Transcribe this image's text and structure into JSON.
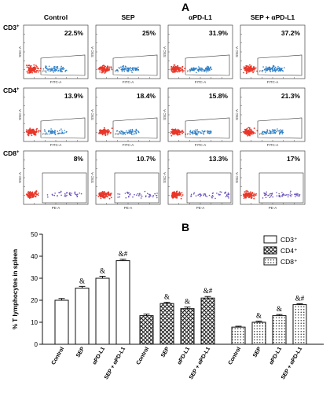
{
  "panel_a": {
    "letter": "A",
    "columns": [
      "Control",
      "SEP",
      "αPD-L1",
      "SEP + αPD-L1"
    ],
    "rows": [
      {
        "marker": "CD3",
        "sup": "+",
        "xaxis": "FITC-A",
        "yaxis": "SSC-A",
        "gate": "P3",
        "pcts": [
          "22.5%",
          "25%",
          "31.9%",
          "37.2%"
        ]
      },
      {
        "marker": "CD4",
        "sup": "+",
        "xaxis": "FITC-A",
        "yaxis": "SSC-A",
        "gate": "P3",
        "pcts": [
          "13.9%",
          "18.4%",
          "15.8%",
          "21.3%"
        ]
      },
      {
        "marker": "CD8",
        "sup": "+",
        "xaxis": "PE-A",
        "yaxis": "SSC-A",
        "gate": "",
        "pcts": [
          "8%",
          "10.7%",
          "13.3%",
          "17%"
        ]
      }
    ],
    "colors": {
      "dense": "#e8372a",
      "cd3": "#2d7fc6",
      "cd4": "#2d7fc6",
      "cd8": "#6b4fb8"
    }
  },
  "chart_data": {
    "type": "bar",
    "letter": "B",
    "ylabel": "% T lymphocytes in spleen",
    "ylim": [
      0,
      50
    ],
    "yticks": [
      "0",
      "10",
      "20",
      "30",
      "40",
      "50"
    ],
    "categories": [
      "Control",
      "SEP",
      "αPD-L1",
      "SEP + αPD-L1"
    ],
    "series": [
      {
        "name": "CD3⁺",
        "pattern": "open",
        "values": [
          20,
          25.5,
          30,
          38
        ],
        "errors": [
          0.8,
          0.8,
          0.9,
          0.6
        ],
        "marks": [
          "",
          "&",
          "&",
          "&#"
        ]
      },
      {
        "name": "CD4⁺",
        "pattern": "cross",
        "values": [
          13,
          18.5,
          16.2,
          21
        ],
        "errors": [
          0.7,
          0.6,
          0.7,
          0.7
        ],
        "marks": [
          "",
          "&",
          "&",
          "&#"
        ]
      },
      {
        "name": "CD8⁺",
        "pattern": "dots",
        "values": [
          7.8,
          10,
          13,
          18
        ],
        "errors": [
          0.4,
          0.5,
          0.5,
          0.4
        ],
        "marks": [
          "",
          "&",
          "&",
          "&#"
        ]
      }
    ]
  }
}
